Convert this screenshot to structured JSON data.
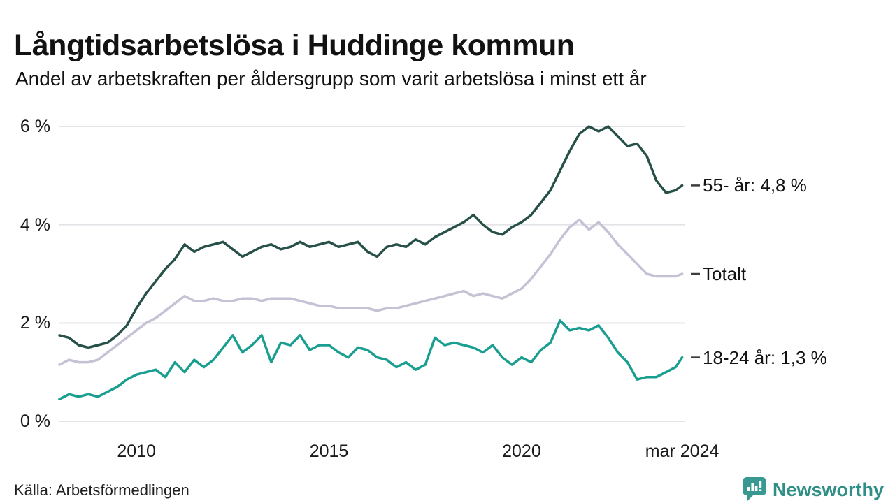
{
  "header": {
    "title": "Långtidsarbetslösa i Huddinge kommun",
    "subtitle": "Andel av arbetskraften per åldersgrupp som varit arbetslösa i minst ett år"
  },
  "footer": {
    "source": "Källa: Arbetsförmedlingen",
    "brand": "Newsworthy"
  },
  "colors": {
    "grid": "#e3e3e8",
    "text": "#121212",
    "end_marker": "#3c3c3c",
    "brand_teal": "#2f8f87",
    "series_55": "#275049",
    "series_totalt": "#c4c2d4",
    "series_1824": "#1a9e90"
  },
  "chart_data": {
    "type": "line",
    "title": "Långtidsarbetslösa i Huddinge kommun",
    "subtitle": "Andel av arbetskraften per åldersgrupp som varit arbetslösa i minst ett år",
    "grid": true,
    "legend_position": "right-end-labels",
    "x_axis": {
      "range": [
        2008.0,
        2024.25
      ],
      "tick_positions": [
        2010,
        2015,
        2020,
        2024.17
      ],
      "ticks": [
        "2010",
        "2015",
        "2020",
        "mar 2024"
      ]
    },
    "y_axis": {
      "unit": "%",
      "range": [
        0,
        6
      ],
      "tick_values": [
        0,
        2,
        4,
        6
      ],
      "ticks": [
        "0 %",
        "2 %",
        "4 %",
        "6 %"
      ]
    },
    "x": [
      2008.0,
      2008.25,
      2008.5,
      2008.75,
      2009.0,
      2009.25,
      2009.5,
      2009.75,
      2010.0,
      2010.25,
      2010.5,
      2010.75,
      2011.0,
      2011.25,
      2011.5,
      2011.75,
      2012.0,
      2012.25,
      2012.5,
      2012.75,
      2013.0,
      2013.25,
      2013.5,
      2013.75,
      2014.0,
      2014.25,
      2014.5,
      2014.75,
      2015.0,
      2015.25,
      2015.5,
      2015.75,
      2016.0,
      2016.25,
      2016.5,
      2016.75,
      2017.0,
      2017.25,
      2017.5,
      2017.75,
      2018.0,
      2018.25,
      2018.5,
      2018.75,
      2019.0,
      2019.25,
      2019.5,
      2019.75,
      2020.0,
      2020.25,
      2020.5,
      2020.75,
      2021.0,
      2021.25,
      2021.5,
      2021.75,
      2022.0,
      2022.25,
      2022.5,
      2022.75,
      2023.0,
      2023.25,
      2023.5,
      2023.75,
      2024.0,
      2024.17
    ],
    "series": [
      {
        "name": "55- år",
        "label": "55- år: 4,8 %",
        "last_value": "4,8 %",
        "color": "#275049",
        "values": [
          1.75,
          1.7,
          1.55,
          1.5,
          1.55,
          1.6,
          1.75,
          1.95,
          2.3,
          2.6,
          2.85,
          3.1,
          3.3,
          3.6,
          3.45,
          3.55,
          3.6,
          3.65,
          3.5,
          3.35,
          3.45,
          3.55,
          3.6,
          3.5,
          3.55,
          3.65,
          3.55,
          3.6,
          3.65,
          3.55,
          3.6,
          3.65,
          3.45,
          3.35,
          3.55,
          3.6,
          3.55,
          3.7,
          3.6,
          3.75,
          3.85,
          3.95,
          4.05,
          4.2,
          4.0,
          3.85,
          3.8,
          3.95,
          4.05,
          4.2,
          4.45,
          4.7,
          5.1,
          5.5,
          5.85,
          6.0,
          5.9,
          6.0,
          5.8,
          5.6,
          5.65,
          5.4,
          4.9,
          4.65,
          4.7,
          4.8
        ]
      },
      {
        "name": "Totalt",
        "label": "Totalt",
        "last_value": "3,0 %",
        "color": "#c4c2d4",
        "values": [
          1.15,
          1.25,
          1.2,
          1.2,
          1.25,
          1.4,
          1.55,
          1.7,
          1.85,
          2.0,
          2.1,
          2.25,
          2.4,
          2.55,
          2.45,
          2.45,
          2.5,
          2.45,
          2.45,
          2.5,
          2.5,
          2.45,
          2.5,
          2.5,
          2.5,
          2.45,
          2.4,
          2.35,
          2.35,
          2.3,
          2.3,
          2.3,
          2.3,
          2.25,
          2.3,
          2.3,
          2.35,
          2.4,
          2.45,
          2.5,
          2.55,
          2.6,
          2.65,
          2.55,
          2.6,
          2.55,
          2.5,
          2.6,
          2.7,
          2.9,
          3.15,
          3.4,
          3.7,
          3.95,
          4.1,
          3.9,
          4.05,
          3.85,
          3.6,
          3.4,
          3.2,
          3.0,
          2.95,
          2.95,
          2.95,
          3.0
        ]
      },
      {
        "name": "18-24 år",
        "label": "18-24 år: 1,3 %",
        "last_value": "1,3 %",
        "color": "#1a9e90",
        "values": [
          0.45,
          0.55,
          0.5,
          0.55,
          0.5,
          0.6,
          0.7,
          0.85,
          0.95,
          1.0,
          1.05,
          0.9,
          1.2,
          1.0,
          1.25,
          1.1,
          1.25,
          1.5,
          1.75,
          1.4,
          1.55,
          1.75,
          1.2,
          1.6,
          1.55,
          1.75,
          1.45,
          1.55,
          1.55,
          1.4,
          1.3,
          1.5,
          1.45,
          1.3,
          1.25,
          1.1,
          1.2,
          1.05,
          1.15,
          1.7,
          1.55,
          1.6,
          1.55,
          1.5,
          1.4,
          1.55,
          1.3,
          1.15,
          1.3,
          1.2,
          1.45,
          1.6,
          2.05,
          1.85,
          1.9,
          1.85,
          1.95,
          1.7,
          1.4,
          1.2,
          0.85,
          0.9,
          0.9,
          1.0,
          1.1,
          1.3
        ]
      }
    ]
  }
}
